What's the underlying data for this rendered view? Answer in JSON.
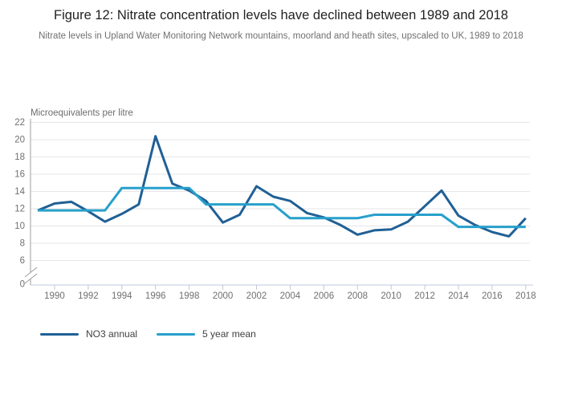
{
  "title": "Figure 12: Nitrate concentration levels have declined between 1989 and 2018",
  "subtitle": "Nitrate levels in Upland Water Monitoring Network mountains, moorland and heath sites, upscaled to UK, 1989 to 2018",
  "legend": {
    "items": [
      {
        "label": "NO3 annual",
        "color": "#206095"
      },
      {
        "label": "5 year mean",
        "color": "#27A0CC"
      }
    ]
  },
  "colors": {
    "dark_blue": "#206095",
    "light_blue": "#27A0CC",
    "gridline": "#e6e6e6",
    "y_axis_line": "#9d9d9d",
    "x_axis_line": "#bfc9da",
    "tick_label": "#707070",
    "axis_title": "#6d6d6d",
    "title_text": "#222222",
    "subtitle_text": "#707070"
  },
  "chart_data": {
    "type": "line",
    "title": "Figure 12: Nitrate concentration levels have declined between 1989 and 2018",
    "subtitle": "Nitrate levels in Upland Water Monitoring Network mountains, moorland and heath sites, upscaled to UK, 1989 to 2018",
    "ylabel": "Microequivalents per litre",
    "xlabel": "",
    "ylim": [
      0,
      22
    ],
    "y_axis_break": {
      "between": [
        0,
        6
      ]
    },
    "y_ticks": [
      0,
      6,
      8,
      10,
      12,
      14,
      16,
      18,
      20,
      22
    ],
    "x_ticks": [
      1990,
      1992,
      1994,
      1996,
      1998,
      2000,
      2002,
      2004,
      2006,
      2008,
      2010,
      2012,
      2014,
      2016,
      2018
    ],
    "grid": "horizontal",
    "legend_position": "bottom-left",
    "x": [
      1989,
      1990,
      1991,
      1992,
      1993,
      1994,
      1995,
      1996,
      1997,
      1998,
      1999,
      2000,
      2001,
      2002,
      2003,
      2004,
      2005,
      2006,
      2007,
      2008,
      2009,
      2010,
      2011,
      2012,
      2013,
      2014,
      2015,
      2016,
      2017,
      2018
    ],
    "series": [
      {
        "name": "NO3 annual",
        "color": "#206095",
        "values": [
          11.8,
          12.6,
          12.8,
          11.7,
          10.5,
          11.4,
          12.5,
          20.4,
          14.9,
          14.1,
          12.9,
          10.4,
          11.3,
          14.6,
          13.4,
          12.9,
          11.5,
          11.0,
          10.1,
          9.0,
          9.5,
          9.6,
          10.5,
          12.3,
          14.1,
          11.2,
          10.1,
          9.3,
          8.8,
          10.9
        ]
      },
      {
        "name": "5 year mean",
        "color": "#27A0CC",
        "values": [
          11.8,
          11.8,
          11.8,
          11.8,
          11.8,
          14.4,
          14.4,
          14.4,
          14.4,
          14.4,
          12.5,
          12.5,
          12.5,
          12.5,
          12.5,
          10.9,
          10.9,
          10.9,
          10.9,
          10.9,
          11.3,
          11.3,
          11.3,
          11.3,
          11.3,
          9.9,
          9.9,
          9.9,
          9.9,
          9.9
        ]
      }
    ]
  }
}
